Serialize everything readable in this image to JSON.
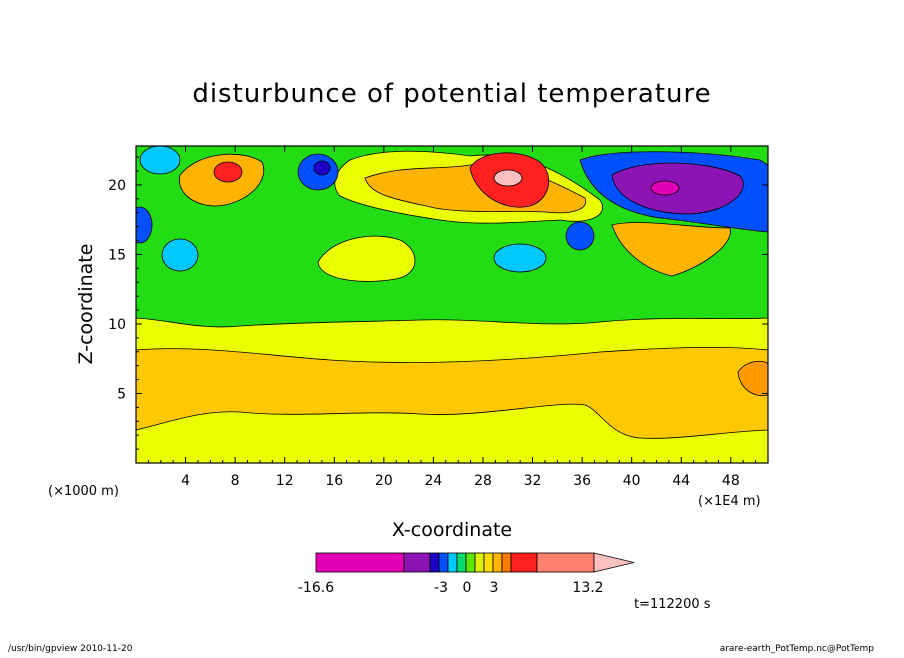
{
  "chart_data": {
    "type": "contour",
    "title": "disturbunce of potential temperature",
    "xlabel": "X-coordinate",
    "ylabel": "Z-coordinate",
    "x_unit_left": "(×1000 m)",
    "x_unit_right": "(×1E4 m)",
    "x_ticks": [
      "4",
      "8",
      "12",
      "16",
      "20",
      "24",
      "28",
      "32",
      "36",
      "40",
      "44",
      "48"
    ],
    "y_ticks": [
      "5",
      "10",
      "15",
      "20"
    ],
    "xlim": [
      0,
      51
    ],
    "ylim": [
      0,
      22.8
    ],
    "colorbar": {
      "labels": [
        "-16.6",
        "-3",
        "0",
        "3",
        "13.2"
      ],
      "min": -16.6,
      "max": 13.2,
      "colors": [
        "#e100b4",
        "#8c14b4",
        "#1e00c8",
        "#0050ff",
        "#00c8ff",
        "#00dc6e",
        "#5ae600",
        "#dcf000",
        "#ffdc00",
        "#ffb400",
        "#ff7800",
        "#ff2020",
        "#ff8070",
        "#ffc0c0"
      ]
    },
    "time_label": "t=112200 s",
    "field_bands": [
      {
        "z_range": [
          0,
          2.3
        ],
        "color": "#eaff00"
      },
      {
        "z_range": [
          2.3,
          8.0
        ],
        "color": "#ffc800"
      },
      {
        "z_range": [
          8.0,
          10.0
        ],
        "color": "#eaff00"
      },
      {
        "z_range": [
          10.0,
          15.5
        ],
        "color": "#22dc14"
      },
      {
        "z_range": [
          15.5,
          22.8
        ],
        "color": "#22dc14"
      }
    ],
    "features": [
      {
        "x": 30,
        "z": 20.5,
        "value": 13.2,
        "color": "#ff2020"
      },
      {
        "x": 43,
        "z": 19.5,
        "value": -16.6,
        "color": "#8c14b4"
      },
      {
        "x": 7.5,
        "z": 21,
        "value": 6,
        "color": "#ff2020"
      },
      {
        "x": 16,
        "z": 21.2,
        "value": -6,
        "color": "#1e00c8"
      }
    ]
  },
  "footer": {
    "left": "/usr/bin/gpview   2010-11-20",
    "right": "arare-earth_PotTemp.nc@PotTemp"
  }
}
